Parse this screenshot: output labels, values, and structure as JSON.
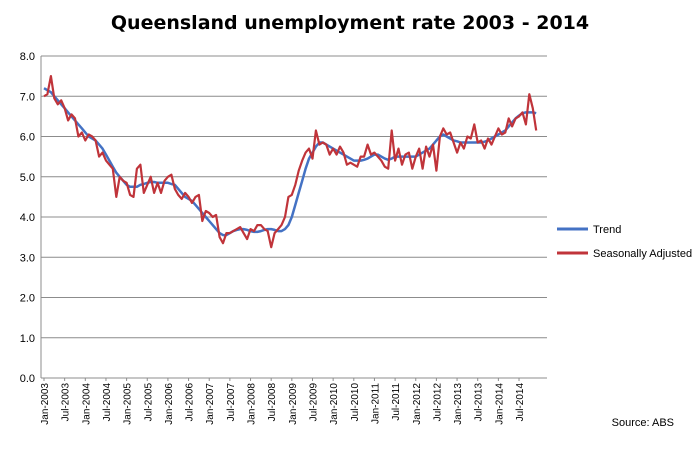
{
  "chart_data": {
    "type": "line",
    "title": "Queensland unemployment rate 2003 - 2014",
    "source": "Source: ABS",
    "ylim": [
      0.0,
      8.0
    ],
    "y_ticks": [
      "0.0",
      "1.0",
      "2.0",
      "3.0",
      "4.0",
      "5.0",
      "6.0",
      "7.0",
      "8.0"
    ],
    "x_tick_labels": [
      "Jan-2003",
      "Jul-2003",
      "Jan-2004",
      "Jul-2004",
      "Jan-2005",
      "Jul-2005",
      "Jan-2006",
      "Jul-2006",
      "Jan-2007",
      "Jul-2007",
      "Jan-2008",
      "Jul-2008",
      "Jan-2009",
      "Jul-2009",
      "Jan-2010",
      "Jul-2010",
      "Jan-2011",
      "Jul-2011",
      "Jan-2012",
      "Jul-2012",
      "Jan-2013",
      "Jul-2013",
      "Jan-2014",
      "Jul-2014"
    ],
    "x_start": "2003-01",
    "x_end": "2014-12",
    "grid": true,
    "legend_position": "right",
    "series": [
      {
        "name": "Trend",
        "color": "#4472C4",
        "values": [
          7.2,
          7.15,
          7.1,
          7.0,
          6.9,
          6.8,
          6.7,
          6.6,
          6.5,
          6.4,
          6.3,
          6.2,
          6.1,
          6.0,
          5.95,
          5.9,
          5.8,
          5.7,
          5.55,
          5.4,
          5.25,
          5.1,
          5.0,
          4.9,
          4.8,
          4.75,
          4.75,
          4.75,
          4.8,
          4.82,
          4.85,
          4.87,
          4.87,
          4.85,
          4.85,
          4.85,
          4.85,
          4.82,
          4.8,
          4.7,
          4.6,
          4.5,
          4.45,
          4.4,
          4.3,
          4.2,
          4.1,
          4.0,
          3.9,
          3.8,
          3.7,
          3.6,
          3.55,
          3.55,
          3.6,
          3.65,
          3.68,
          3.7,
          3.7,
          3.68,
          3.65,
          3.63,
          3.63,
          3.65,
          3.68,
          3.7,
          3.7,
          3.68,
          3.65,
          3.65,
          3.7,
          3.8,
          4.0,
          4.3,
          4.6,
          4.9,
          5.2,
          5.45,
          5.6,
          5.75,
          5.85,
          5.85,
          5.8,
          5.75,
          5.7,
          5.65,
          5.6,
          5.55,
          5.5,
          5.45,
          5.4,
          5.4,
          5.4,
          5.42,
          5.45,
          5.5,
          5.55,
          5.55,
          5.5,
          5.45,
          5.42,
          5.45,
          5.5,
          5.5,
          5.5,
          5.5,
          5.5,
          5.5,
          5.5,
          5.55,
          5.6,
          5.65,
          5.7,
          5.8,
          5.9,
          6.0,
          6.05,
          6.0,
          5.95,
          5.9,
          5.88,
          5.85,
          5.85,
          5.85,
          5.85,
          5.85,
          5.85,
          5.85,
          5.87,
          5.9,
          5.95,
          6.0,
          6.05,
          6.1,
          6.15,
          6.25,
          6.35,
          6.45,
          6.52,
          6.58,
          6.6,
          6.6,
          6.6,
          6.58
        ]
      },
      {
        "name": "Seasonally Adjusted",
        "color": "#C0343A",
        "values": [
          7.0,
          7.05,
          7.5,
          6.95,
          6.8,
          6.9,
          6.7,
          6.4,
          6.55,
          6.45,
          6.0,
          6.1,
          5.9,
          6.05,
          6.0,
          5.9,
          5.5,
          5.6,
          5.4,
          5.3,
          5.2,
          4.5,
          5.0,
          4.9,
          4.85,
          4.55,
          4.5,
          5.2,
          5.3,
          4.6,
          4.8,
          5.0,
          4.6,
          4.85,
          4.6,
          4.9,
          5.0,
          5.05,
          4.7,
          4.55,
          4.45,
          4.6,
          4.5,
          4.35,
          4.5,
          4.55,
          3.9,
          4.15,
          4.1,
          4.0,
          4.05,
          3.5,
          3.35,
          3.6,
          3.6,
          3.65,
          3.7,
          3.75,
          3.6,
          3.45,
          3.7,
          3.65,
          3.8,
          3.8,
          3.7,
          3.65,
          3.25,
          3.6,
          3.7,
          3.8,
          4.0,
          4.5,
          4.55,
          4.8,
          5.15,
          5.4,
          5.6,
          5.7,
          5.45,
          6.15,
          5.8,
          5.85,
          5.8,
          5.55,
          5.7,
          5.55,
          5.75,
          5.6,
          5.3,
          5.35,
          5.3,
          5.25,
          5.5,
          5.5,
          5.8,
          5.55,
          5.6,
          5.5,
          5.4,
          5.25,
          5.2,
          6.15,
          5.4,
          5.7,
          5.3,
          5.55,
          5.6,
          5.2,
          5.5,
          5.7,
          5.2,
          5.75,
          5.5,
          5.8,
          5.15,
          6.0,
          6.2,
          6.05,
          6.1,
          5.85,
          5.6,
          5.85,
          5.7,
          6.0,
          5.95,
          6.3,
          5.85,
          5.9,
          5.7,
          5.95,
          5.8,
          6.0,
          6.2,
          6.05,
          6.1,
          6.45,
          6.25,
          6.45,
          6.5,
          6.6,
          6.3,
          7.05,
          6.7,
          6.15
        ]
      }
    ]
  }
}
